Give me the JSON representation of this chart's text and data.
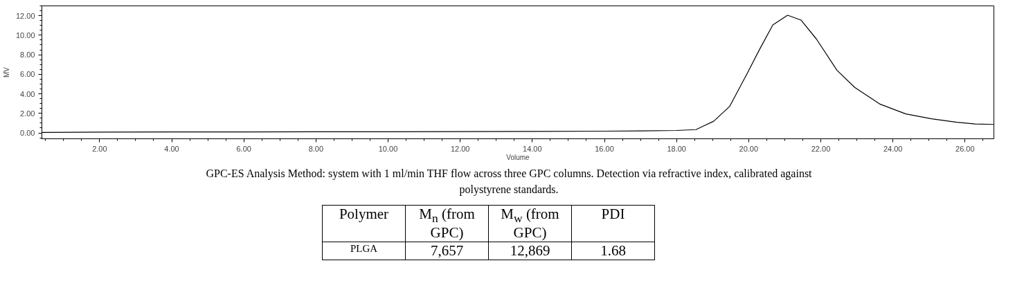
{
  "chart_data": {
    "type": "line",
    "xlabel": "Volume",
    "ylabel": "MV",
    "x": [
      0.4,
      2,
      4,
      6,
      8,
      10,
      12,
      14,
      16,
      17,
      18,
      18.54,
      19.03,
      19.47,
      19.96,
      20.31,
      20.67,
      21.08,
      21.45,
      21.88,
      22.45,
      22.94,
      23.65,
      24.36,
      25.07,
      25.77,
      26.28,
      26.8
    ],
    "series": [
      {
        "color": "#000000",
        "values": [
          0.05,
          0.08,
          0.1,
          0.1,
          0.12,
          0.12,
          0.13,
          0.15,
          0.18,
          0.2,
          0.25,
          0.34,
          1.2,
          2.7,
          6.1,
          8.6,
          11.05,
          12.04,
          11.55,
          9.6,
          6.4,
          4.66,
          2.93,
          1.94,
          1.45,
          1.09,
          0.91,
          0.87
        ]
      }
    ],
    "xlim": [
      0.4,
      26.8
    ],
    "ylim": [
      -0.6,
      13
    ],
    "xticks": [
      {
        "value": 2,
        "label": "2.00"
      },
      {
        "value": 4,
        "label": "4.00"
      },
      {
        "value": 6,
        "label": "6.00"
      },
      {
        "value": 8,
        "label": "8.00"
      },
      {
        "value": 10,
        "label": "10.00"
      },
      {
        "value": 12,
        "label": "12.00"
      },
      {
        "value": 14,
        "label": "14.00"
      },
      {
        "value": 16,
        "label": "16.00"
      },
      {
        "value": 18,
        "label": "18.00"
      },
      {
        "value": 20,
        "label": "20.00"
      },
      {
        "value": 22,
        "label": "22.00"
      },
      {
        "value": 24,
        "label": "24.00"
      },
      {
        "value": 26,
        "label": "26.00"
      }
    ],
    "yticks": [
      {
        "value": 0,
        "label": "0.00"
      },
      {
        "value": 2,
        "label": "2.00"
      },
      {
        "value": 4,
        "label": "4.00"
      },
      {
        "value": 6,
        "label": "6.00"
      },
      {
        "value": 8,
        "label": "8.00"
      },
      {
        "value": 10,
        "label": "10.00"
      },
      {
        "value": 12,
        "label": "12.00"
      }
    ],
    "grid": false,
    "marker": "none",
    "line_style": "solid",
    "annotations": [
      "GPC-ES Analysis Method: system with 1 ml/min THF flow across three GPC columns. Detection via refractive index, calibrated against polystyrene standards.",
      "Polymer",
      "M$_{n}$ (from GPC)",
      "M$_{w}$ (from GPC)",
      "PDI",
      "PLGA",
      "7,657",
      "12,869",
      "1.68"
    ]
  }
}
